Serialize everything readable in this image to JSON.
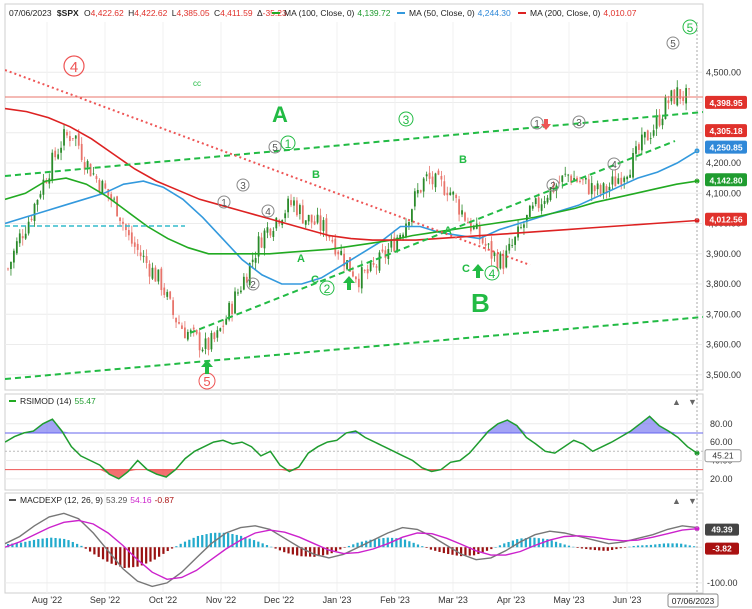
{
  "header": {
    "date": "07/06/2023",
    "symbol": "$SPX",
    "open_label": "O",
    "open": "4,422.62",
    "high_label": "H",
    "high": "4,422.62",
    "low_label": "L",
    "low": "4,385.05",
    "close_label": "C",
    "close": "4,411.59",
    "change_label": "Δ",
    "change": "-35.23",
    "ma100_label": "MA (100, Close, 0)",
    "ma100_value": "4,139.72",
    "ma50_label": "MA (50, Close, 0)",
    "ma50_value": "4,244.30",
    "ma200_label": "MA (200, Close, 0)",
    "ma200_value": "4,010.07"
  },
  "colors": {
    "up": "#2a8a2a",
    "down": "#e8746b",
    "ma50": "#3399dd",
    "ma100": "#22aa22",
    "ma200": "#dd2222",
    "green_annot": "#22bb44",
    "red_annot": "#ee5555",
    "gray_annot": "#888888"
  },
  "price_tags": [
    {
      "value": "4,398.95",
      "color": "#e0312b"
    },
    {
      "value": "4,305.18",
      "color": "#e0312b"
    },
    {
      "value": "4,250.85",
      "color": "#2f88d8"
    },
    {
      "value": "4,142.80",
      "color": "#1f9c2f"
    },
    {
      "value": "4,012.56",
      "color": "#e0312b"
    }
  ],
  "rsi": {
    "label": "RSIMOD (14)",
    "value": "55.47",
    "tag": "45.21"
  },
  "macd": {
    "label": "MACDEXP (12, 26, 9)",
    "v1": "53.29",
    "v2": "54.16",
    "v3": "-0.87",
    "tag1": "49.39",
    "tag2": "-3.82"
  },
  "x_axis": {
    "labels": [
      "Aug '22",
      "Sep '22",
      "Oct '22",
      "Nov '22",
      "Dec '22",
      "Jan '23",
      "Feb '23",
      "Mar '23",
      "Apr '23",
      "May '23",
      "Jun '23"
    ],
    "date_tag": "07/06/2023"
  },
  "annotations": {
    "big_a": "A",
    "big_b": "B",
    "cc": "cc",
    "small_a": "A",
    "small_b": "B",
    "small_c": "C",
    "w1": "1",
    "w2": "2",
    "w3": "3",
    "w4": "4",
    "w5": "5"
  },
  "chart_data": [
    {
      "type": "candlestick",
      "title": "$SPX",
      "x_range": [
        "2022-07",
        "2023-07-06"
      ],
      "ylim": [
        3400,
        4600
      ],
      "y_ticks": [
        3500,
        3600,
        3700,
        3800,
        3900,
        4000,
        4100,
        4200,
        4300,
        4400,
        4500
      ],
      "y_tick_labels": [
        "3,500.00",
        "3,600.00",
        "3,700.00",
        "3,800.00",
        "3,900.00",
        "4,000.00",
        "4,100.00",
        "4,200.00",
        "4,300.00",
        "4,400.00",
        "4,500.00"
      ],
      "close_path": [
        3850,
        3950,
        4020,
        4120,
        4200,
        4280,
        4300,
        4210,
        4150,
        4100,
        4050,
        3950,
        3900,
        3850,
        3800,
        3700,
        3650,
        3620,
        3590,
        3620,
        3700,
        3780,
        3860,
        3950,
        4000,
        4040,
        4070,
        4020,
        4000,
        3980,
        3920,
        3860,
        3820,
        3840,
        3880,
        3930,
        3990,
        4080,
        4150,
        4130,
        4120,
        4060,
        4000,
        3950,
        3900,
        3870,
        3930,
        4000,
        4050,
        4100,
        4130,
        4160,
        4140,
        4120,
        4100,
        4130,
        4170,
        4210,
        4280,
        4330,
        4400,
        4430,
        4410
      ],
      "series": [
        {
          "name": "MA (50, Close, 0)",
          "values": [
            4000,
            4020,
            4040,
            4060,
            4080,
            4100,
            4130,
            4140,
            4120,
            4080,
            4020,
            3950,
            3880,
            3830,
            3800,
            3800,
            3820,
            3860,
            3900,
            3940,
            3990,
            3990,
            3970,
            3960,
            3950,
            3980,
            4000,
            4020,
            4040,
            4060,
            4090,
            4120,
            4150,
            4170,
            4200,
            4240
          ]
        },
        {
          "name": "MA (100, Close, 0)",
          "values": [
            4080,
            4100,
            4140,
            4150,
            4130,
            4090,
            4040,
            3990,
            3950,
            3920,
            3900,
            3900,
            3900,
            3900,
            3905,
            3910,
            3915,
            3925,
            3935,
            3945,
            3960,
            3970,
            3980,
            3990,
            4000,
            4010,
            4020,
            4035,
            4050,
            4070,
            4085,
            4100,
            4115,
            4130,
            4140
          ]
        },
        {
          "name": "MA (200, Close, 0)",
          "values": [
            4380,
            4370,
            4350,
            4320,
            4280,
            4230,
            4180,
            4140,
            4110,
            4080,
            4060,
            4040,
            4020,
            4000,
            3980,
            3960,
            3950,
            3945,
            3945,
            3945,
            3950,
            3955,
            3960,
            3965,
            3970,
            3975,
            3980,
            3985,
            3990,
            3995,
            4000,
            4005,
            4010
          ]
        }
      ]
    },
    {
      "type": "line",
      "title": "RSIMOD (14)",
      "ylim": [
        10,
        95
      ],
      "y_ticks": [
        20,
        40,
        60,
        80
      ],
      "y_tick_labels": [
        "20.00",
        "40.00",
        "60.00",
        "80.00"
      ],
      "series": [
        {
          "name": "RSIMOD (14)",
          "values": [
            60,
            66,
            70,
            72,
            80,
            85,
            72,
            55,
            45,
            40,
            35,
            25,
            20,
            28,
            40,
            30,
            25,
            22,
            30,
            42,
            50,
            55,
            60,
            62,
            58,
            60,
            55,
            45,
            50,
            35,
            28,
            33,
            48,
            55,
            60,
            62,
            70,
            72,
            65,
            60,
            55,
            50,
            45,
            40,
            32,
            28,
            30,
            38,
            40,
            48,
            60,
            72,
            80,
            84,
            78,
            65,
            58,
            50,
            48,
            55,
            62,
            58,
            50,
            55,
            60,
            66,
            72,
            80,
            88,
            78,
            72,
            65,
            55,
            48
          ]
        }
      ]
    },
    {
      "type": "line",
      "title": "MACDEXP (12, 26, 9)",
      "ylim": [
        -120,
        110
      ],
      "y_ticks": [
        -100,
        0
      ],
      "y_tick_labels": [
        "-100.00",
        "0.00"
      ],
      "series": [
        {
          "name": "MACD",
          "values": [
            10,
            30,
            60,
            85,
            95,
            80,
            40,
            -10,
            -60,
            -95,
            -110,
            -100,
            -70,
            -30,
            10,
            40,
            55,
            60,
            50,
            25,
            0,
            -20,
            -30,
            -20,
            0,
            20,
            40,
            55,
            50,
            30,
            5,
            -20,
            -35,
            -30,
            -10,
            15,
            35,
            45,
            40,
            30,
            20,
            10,
            15,
            25,
            35,
            50,
            60,
            55
          ]
        },
        {
          "name": "Signal",
          "values": [
            0,
            15,
            35,
            55,
            70,
            75,
            65,
            40,
            5,
            -35,
            -70,
            -90,
            -85,
            -65,
            -35,
            -5,
            20,
            40,
            48,
            42,
            28,
            10,
            -8,
            -18,
            -15,
            -5,
            10,
            28,
            40,
            38,
            25,
            8,
            -10,
            -22,
            -22,
            -12,
            5,
            20,
            30,
            32,
            28,
            22,
            18,
            20,
            28,
            38,
            48,
            52
          ]
        }
      ]
    }
  ]
}
